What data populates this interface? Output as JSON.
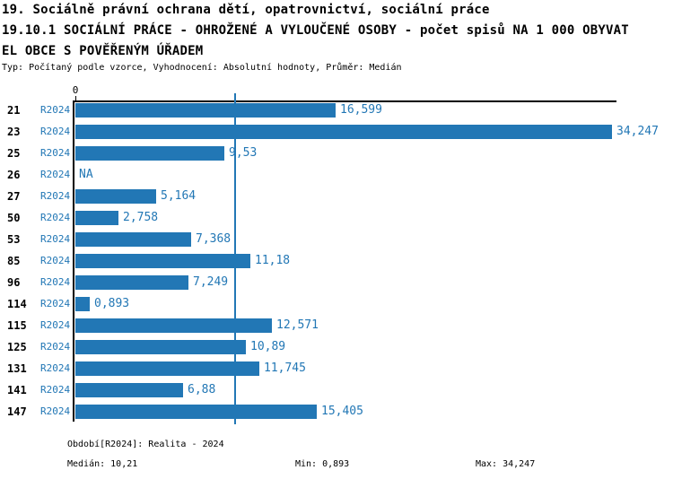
{
  "header": {
    "line1": "19. Sociálně právní ochrana dětí, opatrovnictví, sociální práce",
    "line2": "19.10.1 SOCIÁLNÍ PRÁCE - OHROŽENÉ A VYLOUČENÉ OSOBY - počet spisů NA 1 000 OBYVAT",
    "line3": "EL OBCE S POVĚŘENÝM ÚŘADEM",
    "meta": "Typ: Počítaný podle vzorce, Vyhodnocení: Absolutní hodnoty, Průměr: Medián"
  },
  "chart_data": {
    "type": "bar",
    "orientation": "horizontal",
    "title": "19.10.1 SOCIÁLNÍ PRÁCE - OHROŽENÉ A VYLOUČENÉ OSOBY - počet spisů NA 1 000 OBYVATEL OBCE S POVĚŘENÝM ÚŘADEM",
    "categories": [
      "21",
      "23",
      "25",
      "26",
      "27",
      "50",
      "53",
      "85",
      "96",
      "114",
      "115",
      "125",
      "131",
      "141",
      "147"
    ],
    "series_label": "R2024",
    "values": [
      16.599,
      34.247,
      9.53,
      null,
      5.164,
      2.758,
      7.368,
      11.18,
      7.249,
      0.893,
      12.571,
      10.89,
      11.745,
      6.88,
      15.405
    ],
    "value_labels": [
      "16,599",
      "34,247",
      "9,53",
      "NA",
      "5,164",
      "2,758",
      "7,368",
      "11,18",
      "7,249",
      "0,893",
      "12,571",
      "10,89",
      "11,745",
      "6,88",
      "15,405"
    ],
    "axis": {
      "zero_label": "0",
      "xlim": [
        0,
        34.247
      ],
      "grid": false
    },
    "median_line_value": 10.21,
    "legend_position": "none",
    "bar_color": "#2277b5"
  },
  "footer": {
    "period": "Období[R2024]: Realita - 2024",
    "median": "Medián: 10,21",
    "min": "Min: 0,893",
    "max": "Max: 34,247"
  },
  "colors": {
    "accent": "#2277b5",
    "axis": "#000000",
    "background": "#ffffff"
  }
}
